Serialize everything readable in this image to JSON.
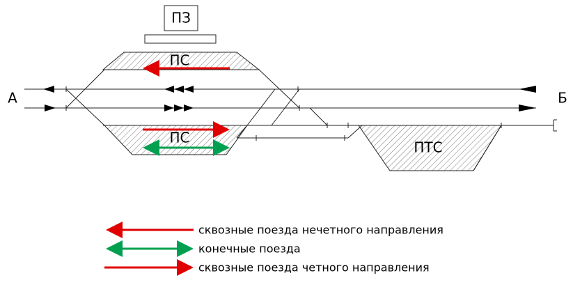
{
  "station": {
    "depot_label": "ПЗ",
    "upper_platform_label": "ПС",
    "lower_platform_label": "ПС",
    "freight_platform_label": "ПТС",
    "left_end": "А",
    "right_end": "Б"
  },
  "legend": [
    "сквозные поезда нечетного направления",
    "конечные поезда",
    "сквозные поезда четного направления"
  ]
}
